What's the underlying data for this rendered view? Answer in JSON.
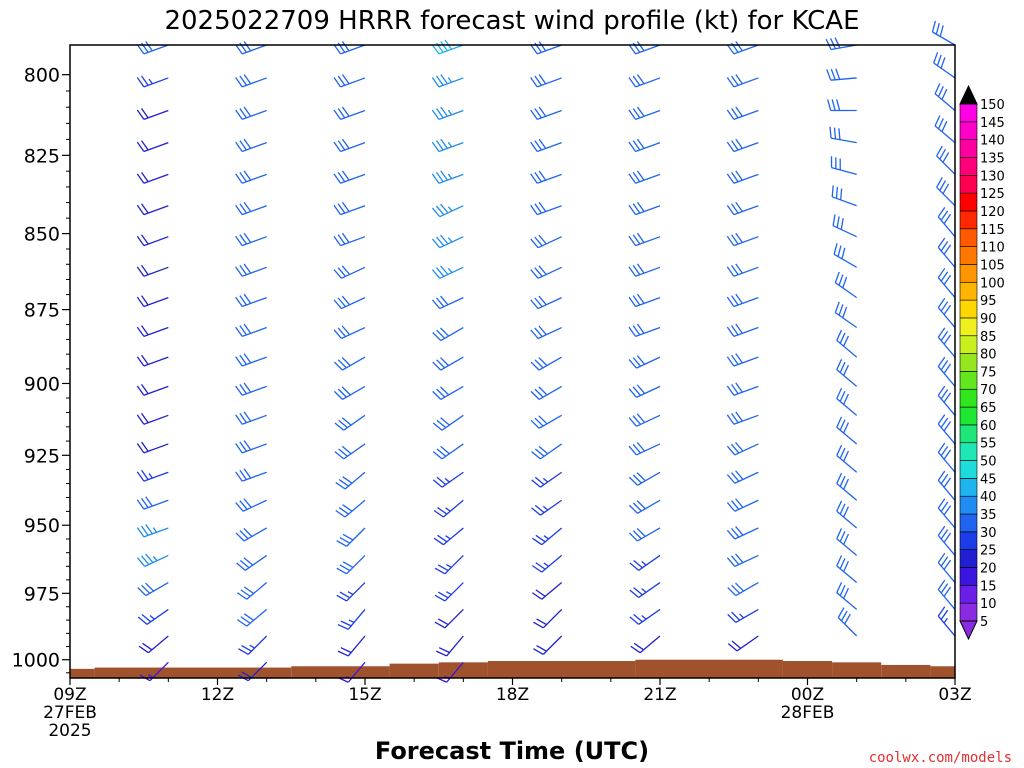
{
  "chart_data": {
    "type": "wind-barb-profile",
    "title": "2025022709 HRRR forecast wind profile (kt) for KCAE",
    "xlabel": "Forecast Time (UTC)",
    "ylabel": "",
    "credit": "coolwx.com/models",
    "y_ticks": [
      {
        "value": 800,
        "label": "800"
      },
      {
        "value": 825,
        "label": "825"
      },
      {
        "value": 850,
        "label": "850"
      },
      {
        "value": 875,
        "label": "875"
      },
      {
        "value": 900,
        "label": "900"
      },
      {
        "value": 925,
        "label": "925"
      },
      {
        "value": 950,
        "label": "950"
      },
      {
        "value": 975,
        "label": "975"
      },
      {
        "value": 1000,
        "label": "1000"
      }
    ],
    "x_ticks": [
      {
        "hour": 0,
        "lines": [
          "09Z",
          "27FEB",
          "2025"
        ]
      },
      {
        "hour": 3,
        "lines": [
          "12Z"
        ]
      },
      {
        "hour": 6,
        "lines": [
          "15Z"
        ]
      },
      {
        "hour": 9,
        "lines": [
          "18Z"
        ]
      },
      {
        "hour": 12,
        "lines": [
          "21Z"
        ]
      },
      {
        "hour": 15,
        "lines": [
          "00Z",
          "28FEB"
        ]
      },
      {
        "hour": 18,
        "lines": [
          "03Z"
        ]
      }
    ],
    "ylim": [
      791,
      1007
    ],
    "xlim_hours": [
      0,
      18
    ],
    "levels_hpa": [
      791,
      801,
      811,
      821,
      831,
      841,
      851,
      861,
      871,
      881,
      891,
      901,
      911,
      921,
      931,
      941,
      951,
      961,
      971,
      981,
      991,
      1001
    ],
    "profiles": [
      {
        "hour": 2,
        "bottom_hpa": 1003,
        "speeds": [
          30,
          25,
          20,
          20,
          20,
          20,
          20,
          20,
          20,
          20,
          20,
          20,
          20,
          20,
          25,
          30,
          35,
          35,
          30,
          25,
          20,
          15
        ],
        "dirs": [
          250,
          250,
          250,
          250,
          250,
          250,
          250,
          250,
          250,
          250,
          250,
          250,
          250,
          250,
          250,
          250,
          250,
          245,
          240,
          235,
          230,
          225
        ]
      },
      {
        "hour": 4,
        "bottom_hpa": 1003,
        "speeds": [
          30,
          30,
          30,
          30,
          30,
          30,
          30,
          30,
          30,
          30,
          30,
          30,
          30,
          30,
          30,
          30,
          30,
          30,
          30,
          30,
          25,
          20
        ],
        "dirs": [
          250,
          250,
          250,
          250,
          250,
          250,
          250,
          250,
          250,
          250,
          250,
          250,
          250,
          250,
          250,
          245,
          240,
          235,
          230,
          230,
          225,
          225
        ]
      },
      {
        "hour": 6,
        "bottom_hpa": 1003,
        "speeds": [
          30,
          30,
          30,
          30,
          30,
          30,
          30,
          30,
          30,
          30,
          30,
          30,
          30,
          30,
          30,
          30,
          30,
          30,
          25,
          25,
          20,
          15
        ],
        "dirs": [
          250,
          250,
          250,
          250,
          250,
          250,
          250,
          245,
          245,
          245,
          240,
          240,
          235,
          235,
          230,
          230,
          225,
          225,
          225,
          220,
          220,
          220
        ]
      },
      {
        "hour": 8,
        "bottom_hpa": 1003,
        "speeds": [
          40,
          35,
          35,
          35,
          35,
          35,
          35,
          35,
          30,
          30,
          30,
          30,
          30,
          30,
          25,
          25,
          25,
          25,
          25,
          20,
          20,
          15
        ],
        "dirs": [
          250,
          250,
          250,
          250,
          250,
          245,
          245,
          245,
          245,
          240,
          240,
          240,
          235,
          235,
          235,
          230,
          230,
          225,
          225,
          225,
          220,
          220
        ]
      },
      {
        "hour": 10,
        "bottom_hpa": 1001,
        "speeds": [
          30,
          30,
          30,
          30,
          30,
          30,
          30,
          30,
          30,
          30,
          30,
          30,
          30,
          30,
          25,
          25,
          25,
          25,
          20,
          20,
          20
        ],
        "dirs": [
          250,
          250,
          250,
          250,
          250,
          250,
          245,
          245,
          245,
          245,
          240,
          240,
          240,
          235,
          235,
          235,
          230,
          230,
          230,
          225,
          225
        ]
      },
      {
        "hour": 12,
        "bottom_hpa": 1001,
        "speeds": [
          30,
          30,
          30,
          30,
          30,
          30,
          30,
          30,
          30,
          30,
          30,
          30,
          30,
          30,
          30,
          30,
          30,
          25,
          25,
          25,
          20
        ],
        "dirs": [
          250,
          250,
          250,
          250,
          250,
          250,
          250,
          250,
          250,
          250,
          245,
          245,
          245,
          245,
          240,
          240,
          240,
          235,
          235,
          235,
          230
        ]
      },
      {
        "hour": 14,
        "bottom_hpa": 1001,
        "speeds": [
          30,
          30,
          30,
          30,
          30,
          30,
          30,
          30,
          30,
          30,
          30,
          30,
          30,
          30,
          30,
          30,
          30,
          30,
          30,
          25,
          20
        ],
        "dirs": [
          250,
          250,
          250,
          250,
          250,
          250,
          250,
          250,
          250,
          250,
          250,
          250,
          250,
          245,
          245,
          245,
          245,
          245,
          240,
          240,
          235
        ]
      },
      {
        "hour": 16,
        "bottom_hpa": 1001,
        "speeds": [
          30,
          30,
          30,
          30,
          30,
          30,
          30,
          30,
          30,
          30,
          30,
          30,
          30,
          30,
          30,
          30,
          30,
          30,
          30,
          30,
          30
        ],
        "dirs": [
          260,
          265,
          270,
          280,
          285,
          290,
          295,
          300,
          305,
          305,
          310,
          310,
          310,
          310,
          310,
          310,
          310,
          310,
          310,
          310,
          315
        ]
      },
      {
        "hour": 18,
        "bottom_hpa": 1001,
        "speeds": [
          30,
          30,
          30,
          30,
          30,
          30,
          30,
          30,
          30,
          30,
          30,
          30,
          30,
          30,
          30,
          30,
          30,
          30,
          30,
          30,
          25
        ],
        "dirs": [
          300,
          305,
          310,
          310,
          315,
          315,
          320,
          320,
          320,
          320,
          320,
          320,
          320,
          320,
          320,
          320,
          320,
          320,
          320,
          320,
          320
        ]
      }
    ],
    "terrain_hpa": [
      {
        "from": 0,
        "to": 0.5,
        "hpa": 1003.5
      },
      {
        "from": 0.5,
        "to": 4.5,
        "hpa": 1003
      },
      {
        "from": 4.5,
        "to": 6.5,
        "hpa": 1002.5
      },
      {
        "from": 6.5,
        "to": 7.5,
        "hpa": 1001.5
      },
      {
        "from": 7.5,
        "to": 8.5,
        "hpa": 1001
      },
      {
        "from": 8.5,
        "to": 11.5,
        "hpa": 1000.5
      },
      {
        "from": 11.5,
        "to": 14.5,
        "hpa": 1000
      },
      {
        "from": 14.5,
        "to": 15.5,
        "hpa": 1000.5
      },
      {
        "from": 15.5,
        "to": 16.5,
        "hpa": 1001
      },
      {
        "from": 16.5,
        "to": 17.5,
        "hpa": 1002
      },
      {
        "from": 17.5,
        "to": 18,
        "hpa": 1002.5
      }
    ],
    "colors": {
      "terrain": "#a0522d",
      "frame": "#000000",
      "credit": "#e03030"
    },
    "colorbar": {
      "levels": [
        5,
        10,
        15,
        20,
        25,
        30,
        35,
        40,
        45,
        50,
        55,
        60,
        65,
        70,
        75,
        80,
        85,
        90,
        95,
        100,
        105,
        110,
        115,
        120,
        125,
        130,
        135,
        140,
        145,
        150
      ],
      "colors": [
        "#8a2be2",
        "#6a1ee8",
        "#3c14e0",
        "#2020d0",
        "#1c3ce8",
        "#1e64f0",
        "#1e8cf0",
        "#1eb4f0",
        "#1edcdc",
        "#1ee6b4",
        "#1ee678",
        "#1ee632",
        "#32e61e",
        "#64e61e",
        "#96e61e",
        "#c8f01e",
        "#f0f01e",
        "#ffd700",
        "#ffb400",
        "#ff9600",
        "#ff7800",
        "#ff5a00",
        "#ff2800",
        "#ff0000",
        "#ff0050",
        "#ff0078",
        "#ff00a0",
        "#ff00c8",
        "#ff00e6"
      ],
      "over_color": "#000000",
      "under_color": "#8a2be2"
    }
  }
}
